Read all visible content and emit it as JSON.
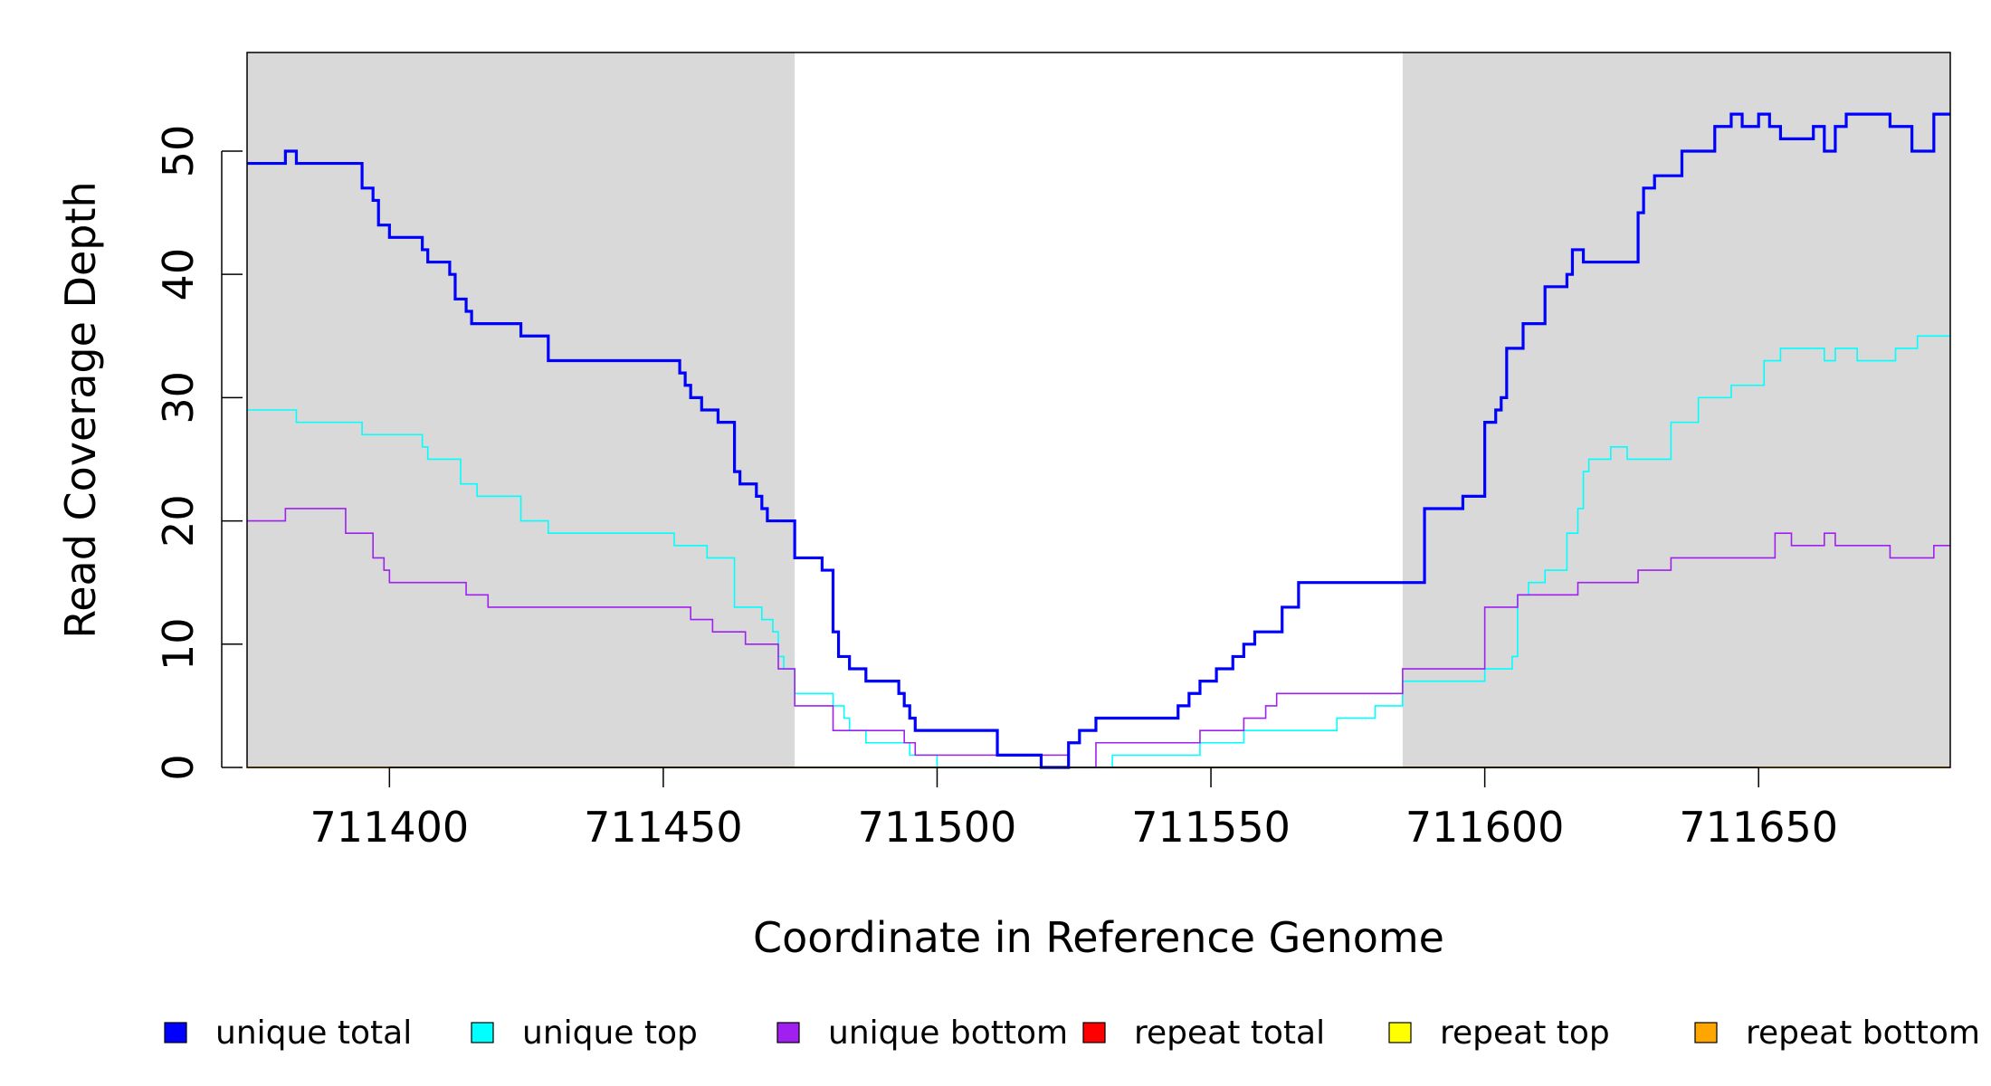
{
  "chart_data": {
    "type": "line",
    "xlabel": "Coordinate in Reference Genome",
    "ylabel": "Read Coverage Depth",
    "xlim": [
      711374,
      711685
    ],
    "ylim": [
      0,
      58
    ],
    "x_ticks": [
      711400,
      711450,
      711500,
      711550,
      711600,
      711650
    ],
    "y_ticks": [
      0,
      10,
      20,
      30,
      40,
      50
    ],
    "x_tick_labels": [
      "711400",
      "711450",
      "711500",
      "711550",
      "711600",
      "711650"
    ],
    "y_tick_labels": [
      "0",
      "10",
      "20",
      "30",
      "40",
      "50"
    ],
    "grid": false,
    "shaded_regions": [
      {
        "x_start": 711374,
        "x_end": 711474,
        "color": "#d9d9d9"
      },
      {
        "x_start": 711585,
        "x_end": 711685,
        "color": "#d9d9d9"
      }
    ],
    "legend": {
      "placement": "bottom",
      "entries": [
        {
          "label": "unique total",
          "color": "#0000ff"
        },
        {
          "label": "unique top",
          "color": "#00ffff"
        },
        {
          "label": "unique bottom",
          "color": "#a020f0"
        },
        {
          "label": "repeat total",
          "color": "#ff0000"
        },
        {
          "label": "repeat top",
          "color": "#ffff00"
        },
        {
          "label": "repeat bottom",
          "color": "#ffa500"
        }
      ]
    },
    "series": [
      {
        "name": "unique total",
        "color": "#0000ff",
        "step": true,
        "bold": true,
        "x": [
          711374,
          711381,
          711383,
          711392,
          711395,
          711397,
          711398,
          711400,
          711406,
          711407,
          711411,
          711412,
          711414,
          711415,
          711424,
          711429,
          711453,
          711454,
          711455,
          711457,
          711460,
          711463,
          711464,
          711467,
          711468,
          711469,
          711474,
          711479,
          711481,
          711482,
          711484,
          711487,
          711493,
          711494,
          711495,
          711496,
          711511,
          711519,
          711524,
          711526,
          711529,
          711544,
          711546,
          711548,
          711551,
          711554,
          711556,
          711558,
          711563,
          711566,
          711585,
          711589,
          711596,
          711600,
          711602,
          711603,
          711604,
          711607,
          711611,
          711615,
          711616,
          711618,
          711620,
          711628,
          711629,
          711631,
          711636,
          711642,
          711645,
          711647,
          711650,
          711650,
          711652,
          711654,
          711660,
          711662,
          711664,
          711666,
          711674,
          711678,
          711682
        ],
        "y": [
          49,
          50,
          49,
          49,
          47,
          46,
          44,
          43,
          42,
          41,
          40,
          38,
          37,
          36,
          35,
          33,
          32,
          31,
          30,
          29,
          28,
          24,
          23,
          22,
          21,
          20,
          17,
          16,
          11,
          9,
          8,
          7,
          6,
          5,
          4,
          3,
          1,
          0,
          2,
          3,
          4,
          5,
          6,
          7,
          8,
          9,
          10,
          11,
          13,
          15,
          15,
          21,
          22,
          28,
          29,
          30,
          34,
          36,
          39,
          40,
          42,
          41,
          41,
          45,
          47,
          48,
          50,
          52,
          53,
          52,
          52,
          53,
          52,
          51,
          52,
          50,
          52,
          53,
          52,
          50,
          53
        ]
      },
      {
        "name": "unique top",
        "color": "#00ffff",
        "step": true,
        "x": [
          711374,
          711383,
          711395,
          711406,
          711407,
          711413,
          711416,
          711424,
          711429,
          711452,
          711458,
          711463,
          711468,
          711470,
          711471,
          711472,
          711474,
          711481,
          711483,
          711484,
          711487,
          711495,
          711500,
          711532,
          711548,
          711556,
          711566,
          711573,
          711580,
          711585,
          711600,
          711605,
          711606,
          711608,
          711611,
          711615,
          711617,
          711618,
          711619,
          711621,
          711623,
          711626,
          711627,
          711634,
          711639,
          711645,
          711651,
          711654,
          711660,
          711662,
          711664,
          711668,
          711670,
          711675,
          711679,
          711682
        ],
        "y": [
          29,
          28,
          27,
          26,
          25,
          23,
          22,
          20,
          19,
          18,
          17,
          13,
          12,
          11,
          9,
          8,
          6,
          5,
          4,
          3,
          2,
          1,
          0,
          1,
          2,
          3,
          3,
          4,
          5,
          7,
          8,
          9,
          14,
          15,
          16,
          19,
          21,
          24,
          25,
          25,
          26,
          25,
          25,
          28,
          30,
          31,
          33,
          34,
          34,
          33,
          34,
          33,
          33,
          34,
          35,
          35
        ]
      }
    ],
    "series_extra": [
      {
        "name": "unique bottom",
        "color": "#a020f0",
        "step": true,
        "x": [
          711374,
          711381,
          711392,
          711397,
          711399,
          711400,
          711414,
          711418,
          711428,
          711453,
          711455,
          711459,
          711465,
          711471,
          711474,
          711481,
          711484,
          711494,
          711496,
          711524,
          711529,
          711548,
          711556,
          711559,
          711560,
          711562,
          711580,
          711585,
          711600,
          711606,
          711611,
          711617,
          711628,
          711634,
          711653,
          711656,
          711660,
          711662,
          711664,
          711674,
          711678,
          711682
        ],
        "y": [
          20,
          21,
          19,
          17,
          16,
          15,
          14,
          13,
          13,
          13,
          12,
          11,
          10,
          8,
          5,
          3,
          3,
          2,
          1,
          0,
          2,
          3,
          4,
          4,
          5,
          6,
          6,
          8,
          13,
          14,
          14,
          15,
          16,
          17,
          19,
          18,
          18,
          19,
          18,
          17,
          17,
          18
        ]
      },
      {
        "name": "repeat total",
        "color": "#ff0000",
        "step": true,
        "x": [
          711374,
          711685
        ],
        "y": [
          0,
          0
        ]
      },
      {
        "name": "repeat top",
        "color": "#ffff00",
        "step": true,
        "x": [
          711374,
          711685
        ],
        "y": [
          0,
          0
        ]
      },
      {
        "name": "repeat bottom",
        "color": "#ffa500",
        "step": true,
        "x": [
          711374,
          711685
        ],
        "y": [
          0,
          0
        ]
      }
    ]
  }
}
